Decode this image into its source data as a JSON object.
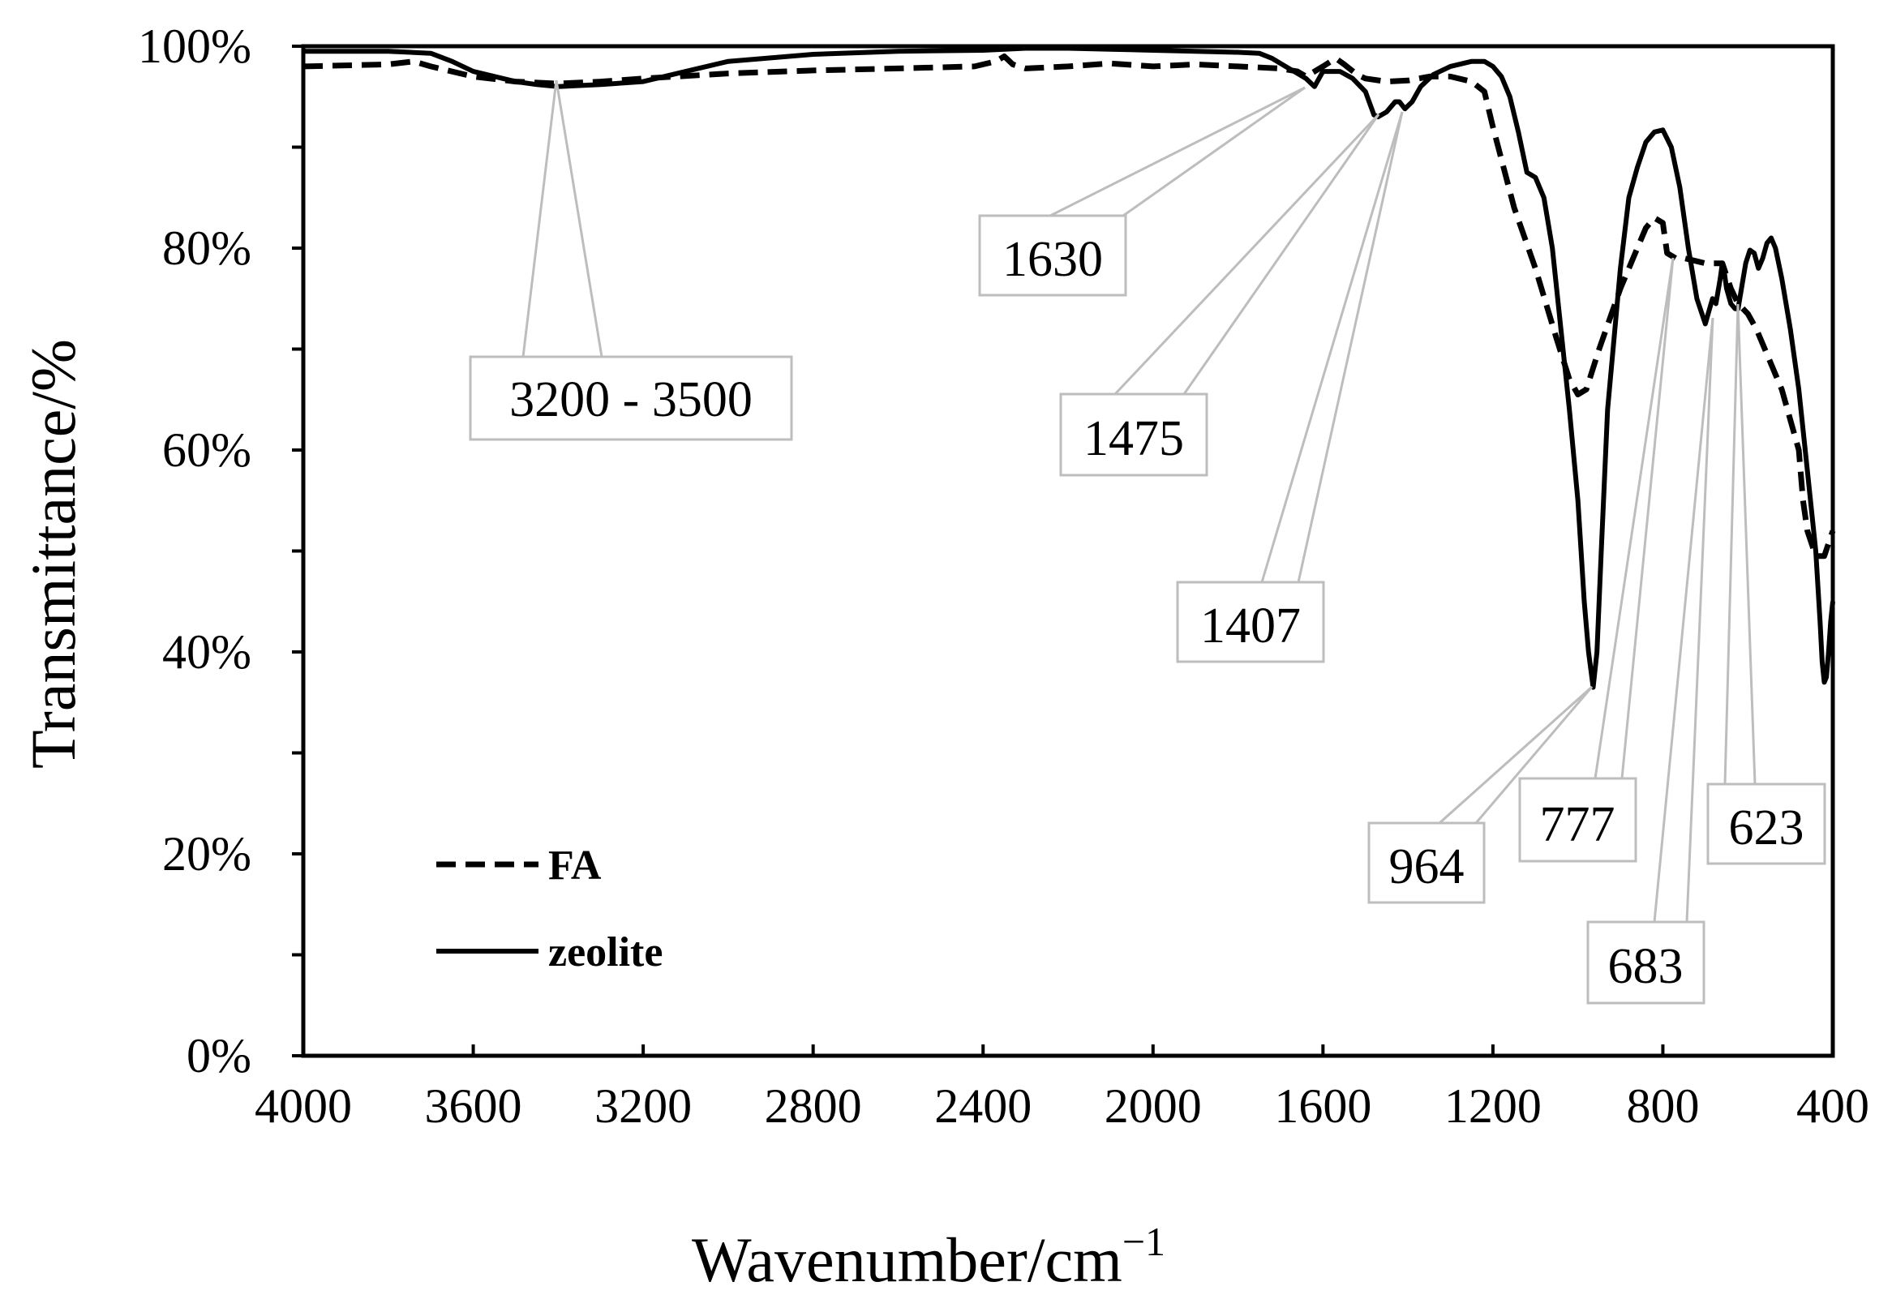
{
  "chart_data": {
    "type": "line",
    "title": "",
    "xlabel": "Wavenumber/cm",
    "xlabel_sup": "−1",
    "ylabel": "Transmittance/%",
    "xlim": [
      4000,
      400
    ],
    "ylim": [
      0,
      100
    ],
    "x_reversed": true,
    "x_ticks": [
      4000,
      3600,
      3200,
      2800,
      2400,
      2000,
      1600,
      1200,
      800,
      400
    ],
    "x_tick_labels": [
      "4000",
      "3600",
      "3200",
      "2800",
      "2400",
      "2000",
      "1600",
      "1200",
      "800",
      "400"
    ],
    "y_ticks": [
      0,
      20,
      40,
      60,
      80,
      100
    ],
    "y_tick_labels": [
      "0%",
      "20%",
      "40%",
      "60%",
      "80%",
      "100%"
    ],
    "y_minor_ticks": [
      10,
      30,
      50,
      70,
      90
    ],
    "grid": false,
    "legend_position": "bottom-left",
    "series": [
      {
        "name": "FA",
        "style": "dashed",
        "color": "#000000",
        "x": [
          4000,
          3800,
          3740,
          3700,
          3600,
          3500,
          3400,
          3300,
          3200,
          3000,
          2800,
          2600,
          2420,
          2370,
          2350,
          2330,
          2300,
          2200,
          2100,
          2000,
          1900,
          1800,
          1700,
          1660,
          1640,
          1620,
          1600,
          1570,
          1550,
          1520,
          1500,
          1450,
          1400,
          1350,
          1300,
          1250,
          1220,
          1200,
          1150,
          1100,
          1050,
          1020,
          1000,
          980,
          950,
          900,
          860,
          840,
          820,
          800,
          790,
          770,
          750,
          720,
          700,
          680,
          660,
          640,
          623,
          600,
          580,
          560,
          520,
          480,
          470,
          460,
          440,
          420,
          400
        ],
        "y": [
          98,
          98.2,
          98.5,
          98,
          97,
          96.5,
          96.3,
          96.5,
          96.8,
          97.3,
          97.6,
          97.8,
          98,
          98.5,
          99,
          98.2,
          97.8,
          98,
          98.3,
          98,
          98.2,
          98,
          97.8,
          97.5,
          97,
          97.5,
          98,
          98.8,
          98.2,
          97.2,
          96.8,
          96.5,
          96.6,
          97,
          97,
          96.5,
          95.5,
          92,
          84,
          78,
          71,
          67,
          65.5,
          66,
          70,
          76,
          80,
          82,
          83,
          82.5,
          79.5,
          79,
          79,
          78.7,
          78.5,
          78.5,
          78.5,
          76,
          74.5,
          73.5,
          72,
          70,
          66,
          60,
          55,
          52,
          49.5,
          49.5,
          52
        ]
      },
      {
        "name": "zeolite",
        "style": "solid",
        "color": "#000000",
        "x": [
          4000,
          3800,
          3700,
          3650,
          3600,
          3500,
          3450,
          3400,
          3300,
          3200,
          3100,
          3000,
          2800,
          2600,
          2400,
          2350,
          2300,
          2200,
          2100,
          2000,
          1900,
          1800,
          1750,
          1720,
          1700,
          1680,
          1660,
          1640,
          1620,
          1600,
          1560,
          1530,
          1500,
          1480,
          1470,
          1450,
          1430,
          1420,
          1407,
          1390,
          1370,
          1340,
          1300,
          1250,
          1220,
          1200,
          1180,
          1160,
          1140,
          1120,
          1100,
          1080,
          1060,
          1040,
          1020,
          1000,
          985,
          975,
          964,
          955,
          945,
          930,
          900,
          880,
          860,
          840,
          820,
          800,
          780,
          760,
          740,
          720,
          700,
          690,
          683,
          675,
          665,
          660,
          655,
          650,
          640,
          630,
          623,
          615,
          605,
          595,
          585,
          575,
          565,
          555,
          545,
          535,
          520,
          500,
          480,
          460,
          440,
          430,
          425,
          420,
          415,
          410,
          405,
          400
        ],
        "y": [
          99.5,
          99.5,
          99.3,
          98.5,
          97.5,
          96.5,
          96.2,
          96,
          96.2,
          96.5,
          97.5,
          98.5,
          99.2,
          99.5,
          99.6,
          99.7,
          99.8,
          99.8,
          99.7,
          99.6,
          99.5,
          99.4,
          99.3,
          98.8,
          98.3,
          97.8,
          97.3,
          96.8,
          96,
          97.5,
          97.5,
          96.8,
          95.5,
          93.2,
          93,
          93.5,
          94.5,
          94.5,
          93.8,
          94.5,
          96,
          97.2,
          98,
          98.5,
          98.5,
          98,
          97,
          95,
          91.5,
          87.5,
          87,
          85,
          80,
          72,
          64,
          55,
          45,
          40,
          36.5,
          40,
          50,
          64,
          78,
          85,
          88,
          90.5,
          91.5,
          91.7,
          90,
          86,
          80,
          75,
          72.5,
          74,
          75,
          74.5,
          77,
          78.5,
          77.5,
          76,
          74.5,
          74,
          74,
          76,
          78.5,
          79.8,
          79.5,
          78,
          79,
          80.5,
          81,
          80,
          77,
          72,
          66,
          58,
          50,
          43,
          39,
          37,
          37.5,
          40,
          43,
          45
        ]
      }
    ],
    "annotations": [
      {
        "label": "3200 - 3500",
        "x": 3400
      },
      {
        "label": "1630",
        "x": 1640
      },
      {
        "label": "1475",
        "x": 1475
      },
      {
        "label": "1407",
        "x": 1407
      },
      {
        "label": "964",
        "x": 964
      },
      {
        "label": "777",
        "x": 777
      },
      {
        "label": "683",
        "x": 683
      },
      {
        "label": "623",
        "x": 623
      }
    ]
  }
}
